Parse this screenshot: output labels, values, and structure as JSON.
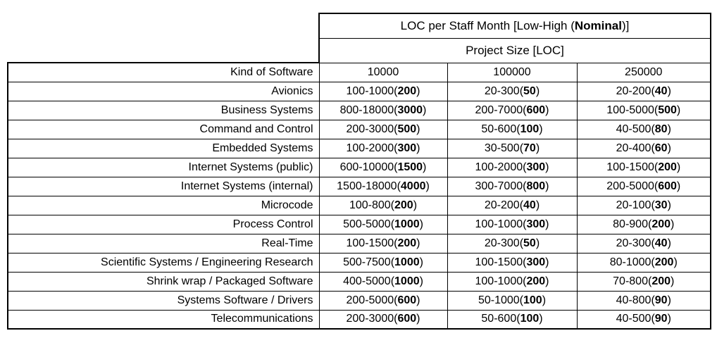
{
  "table": {
    "title": {
      "prefix": "LOC per Staff Month [Low-High (",
      "bold": "Nominal",
      "suffix": ")]"
    },
    "subtitle": "Project Size [LOC]",
    "kind_header": "Kind of Software",
    "size_headers": [
      "10000",
      "100000",
      "250000"
    ],
    "rows": [
      {
        "kind": "Avionics",
        "cells": [
          {
            "range": "100-1000",
            "nominal": "200"
          },
          {
            "range": "20-300",
            "nominal": "50"
          },
          {
            "range": "20-200",
            "nominal": "40"
          }
        ]
      },
      {
        "kind": "Business Systems",
        "cells": [
          {
            "range": "800-18000",
            "nominal": "3000"
          },
          {
            "range": "200-7000",
            "nominal": "600"
          },
          {
            "range": "100-5000",
            "nominal": "500"
          }
        ]
      },
      {
        "kind": "Command and Control",
        "cells": [
          {
            "range": "200-3000",
            "nominal": "500"
          },
          {
            "range": "50-600",
            "nominal": "100"
          },
          {
            "range": "40-500",
            "nominal": "80"
          }
        ]
      },
      {
        "kind": "Embedded Systems",
        "cells": [
          {
            "range": "100-2000",
            "nominal": "300"
          },
          {
            "range": "30-500",
            "nominal": "70"
          },
          {
            "range": "20-400",
            "nominal": "60"
          }
        ]
      },
      {
        "kind": "Internet Systems (public)",
        "cells": [
          {
            "range": "600-10000",
            "nominal": "1500"
          },
          {
            "range": "100-2000",
            "nominal": "300"
          },
          {
            "range": "100-1500",
            "nominal": "200"
          }
        ]
      },
      {
        "kind": "Internet Systems (internal)",
        "cells": [
          {
            "range": "1500-18000",
            "nominal": "4000"
          },
          {
            "range": "300-7000",
            "nominal": "800"
          },
          {
            "range": "200-5000",
            "nominal": "600"
          }
        ]
      },
      {
        "kind": "Microcode",
        "cells": [
          {
            "range": "100-800",
            "nominal": "200"
          },
          {
            "range": "20-200",
            "nominal": "40"
          },
          {
            "range": "20-100",
            "nominal": "30"
          }
        ]
      },
      {
        "kind": "Process Control",
        "cells": [
          {
            "range": "500-5000",
            "nominal": "1000"
          },
          {
            "range": "100-1000",
            "nominal": "300"
          },
          {
            "range": "80-900",
            "nominal": "200"
          }
        ]
      },
      {
        "kind": "Real-Time",
        "cells": [
          {
            "range": "100-1500",
            "nominal": "200"
          },
          {
            "range": "20-300",
            "nominal": "50"
          },
          {
            "range": "20-300",
            "nominal": "40"
          }
        ]
      },
      {
        "kind": "Scientific Systems / Engineering Research",
        "cells": [
          {
            "range": "500-7500",
            "nominal": "1000"
          },
          {
            "range": "100-1500",
            "nominal": "300"
          },
          {
            "range": "80-1000",
            "nominal": "200"
          }
        ]
      },
      {
        "kind": "Shrink wrap / Packaged Software",
        "cells": [
          {
            "range": "400-5000",
            "nominal": "1000"
          },
          {
            "range": "100-1000",
            "nominal": "200"
          },
          {
            "range": "70-800",
            "nominal": "200"
          }
        ]
      },
      {
        "kind": "Systems Software / Drivers",
        "cells": [
          {
            "range": "200-5000",
            "nominal": "600"
          },
          {
            "range": "50-1000",
            "nominal": "100"
          },
          {
            "range": "40-800",
            "nominal": "90"
          }
        ]
      },
      {
        "kind": "Telecommunications",
        "cells": [
          {
            "range": "200-3000",
            "nominal": "600"
          },
          {
            "range": "50-600",
            "nominal": "100"
          },
          {
            "range": "40-500",
            "nominal": "90"
          }
        ]
      }
    ]
  },
  "colors": {
    "border": "#000000",
    "background": "#ffffff",
    "text": "#000000"
  }
}
